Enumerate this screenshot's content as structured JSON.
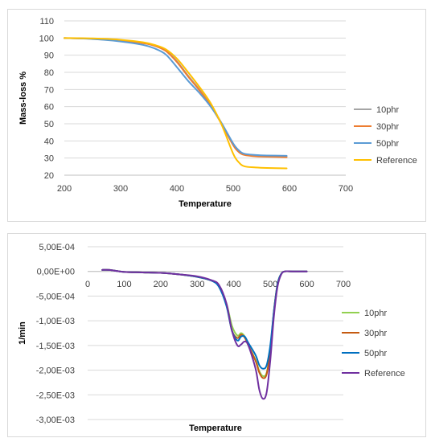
{
  "chart_data": [
    {
      "type": "line",
      "xlabel": "Temperature",
      "ylabel": "Mass-loss %",
      "xlim": [
        200,
        700
      ],
      "ylim": [
        20,
        110
      ],
      "x_ticks": [
        "200",
        "300",
        "400",
        "500",
        "600",
        "700"
      ],
      "y_ticks": [
        "20",
        "30",
        "40",
        "50",
        "60",
        "70",
        "80",
        "90",
        "100",
        "110"
      ],
      "grid": "horizontal",
      "legend_position": "right",
      "series": [
        {
          "name": "10phr",
          "color": "#a5a5a5",
          "x": [
            200,
            250,
            300,
            340,
            360,
            380,
            400,
            420,
            440,
            460,
            480,
            500,
            510,
            520,
            540,
            560,
            595
          ],
          "y": [
            100,
            99.6,
            98.5,
            97.2,
            95.8,
            93,
            86.5,
            78,
            70,
            61,
            50,
            38,
            34,
            32.2,
            31.5,
            31.2,
            31
          ]
        },
        {
          "name": "30phr",
          "color": "#ed7d31",
          "x": [
            200,
            250,
            300,
            340,
            360,
            380,
            400,
            420,
            440,
            460,
            480,
            500,
            510,
            520,
            540,
            560,
            595
          ],
          "y": [
            100,
            99.6,
            98.5,
            97,
            95.5,
            92.5,
            86,
            77.5,
            69.5,
            60.5,
            49.5,
            37.5,
            33.5,
            31.8,
            31,
            30.8,
            30.5
          ]
        },
        {
          "name": "50phr",
          "color": "#5b9bd5",
          "x": [
            200,
            250,
            300,
            340,
            360,
            380,
            400,
            420,
            440,
            460,
            480,
            500,
            510,
            520,
            540,
            560,
            595
          ],
          "y": [
            100,
            99.4,
            98,
            96,
            94,
            90.5,
            83,
            75,
            68,
            60,
            50,
            38.5,
            34.5,
            32.5,
            31.8,
            31.5,
            31.3
          ]
        },
        {
          "name": "Reference",
          "color": "#ffc000",
          "x": [
            200,
            250,
            300,
            340,
            360,
            380,
            400,
            420,
            440,
            460,
            480,
            500,
            510,
            520,
            540,
            560,
            595
          ],
          "y": [
            100,
            99.8,
            99,
            97.5,
            96,
            93.5,
            88,
            80,
            71.5,
            62,
            49,
            32.5,
            27.5,
            25.2,
            24.5,
            24.2,
            24
          ]
        }
      ]
    },
    {
      "type": "line",
      "xlabel": "Temperature",
      "ylabel": "1/min",
      "xlim": [
        0,
        700
      ],
      "ylim": [
        -0.003,
        0.0005
      ],
      "x_ticks": [
        "0",
        "100",
        "200",
        "300",
        "400",
        "500",
        "600",
        "700"
      ],
      "y_ticks": [
        "-3,00E-03",
        "-2,50E-03",
        "-2,00E-03",
        "-1,50E-03",
        "-1,00E-03",
        "-5,00E-04",
        "0,00E+00",
        "5,00E-04"
      ],
      "grid": "horizontal",
      "legend_position": "right",
      "series": [
        {
          "name": "10phr",
          "color": "#92d050",
          "x": [
            40,
            60,
            100,
            150,
            200,
            250,
            300,
            340,
            360,
            380,
            395,
            410,
            420,
            430,
            440,
            460,
            470,
            480,
            490,
            500,
            510,
            520,
            530,
            540,
            560,
            600
          ],
          "y": [
            3e-05,
            3e-05,
            -1e-05,
            -2e-05,
            -3e-05,
            -6e-05,
            -0.00011,
            -0.00019,
            -0.0003,
            -0.00065,
            -0.0011,
            -0.0013,
            -0.00125,
            -0.00132,
            -0.0015,
            -0.0018,
            -0.00202,
            -0.00212,
            -0.00205,
            -0.0016,
            -0.0008,
            -0.00025,
            -5e-05,
            0,
            0,
            0
          ]
        },
        {
          "name": "30phr",
          "color": "#c55a11",
          "x": [
            40,
            60,
            100,
            150,
            200,
            250,
            300,
            340,
            360,
            380,
            395,
            410,
            420,
            430,
            440,
            460,
            470,
            480,
            490,
            500,
            510,
            520,
            530,
            540,
            560,
            600
          ],
          "y": [
            3e-05,
            3e-05,
            -1e-05,
            -2e-05,
            -3e-05,
            -6e-05,
            -0.00011,
            -0.00019,
            -0.0003,
            -0.00068,
            -0.0012,
            -0.00135,
            -0.00128,
            -0.00134,
            -0.0015,
            -0.00182,
            -0.00205,
            -0.00216,
            -0.00208,
            -0.0016,
            -0.0008,
            -0.00025,
            -5e-05,
            0,
            0,
            0
          ]
        },
        {
          "name": "50phr",
          "color": "#0070c0",
          "x": [
            40,
            60,
            100,
            150,
            200,
            250,
            300,
            340,
            360,
            380,
            395,
            410,
            420,
            430,
            440,
            460,
            470,
            480,
            490,
            500,
            510,
            520,
            530,
            540,
            560,
            600
          ],
          "y": [
            3e-05,
            3e-05,
            -1e-05,
            -2e-05,
            -3e-05,
            -6e-05,
            -0.00011,
            -0.00019,
            -0.00032,
            -0.0007,
            -0.0012,
            -0.0014,
            -0.00132,
            -0.00132,
            -0.00145,
            -0.0017,
            -0.0019,
            -0.00197,
            -0.0019,
            -0.0015,
            -0.0008,
            -0.00025,
            -5e-05,
            0,
            0,
            0
          ]
        },
        {
          "name": "Reference",
          "color": "#7030a0",
          "x": [
            40,
            60,
            100,
            150,
            200,
            250,
            300,
            340,
            360,
            380,
            395,
            410,
            420,
            430,
            440,
            460,
            470,
            480,
            490,
            500,
            510,
            520,
            530,
            540,
            560,
            600
          ],
          "y": [
            3e-05,
            3e-05,
            -1e-05,
            -2e-05,
            -3e-05,
            -6e-05,
            -0.0001,
            -0.00018,
            -0.00028,
            -0.00065,
            -0.0012,
            -0.0015,
            -0.00148,
            -0.00142,
            -0.0015,
            -0.00198,
            -0.0024,
            -0.00258,
            -0.00245,
            -0.0018,
            -0.0009,
            -0.0003,
            -6e-05,
            0,
            0,
            0
          ]
        }
      ]
    }
  ]
}
